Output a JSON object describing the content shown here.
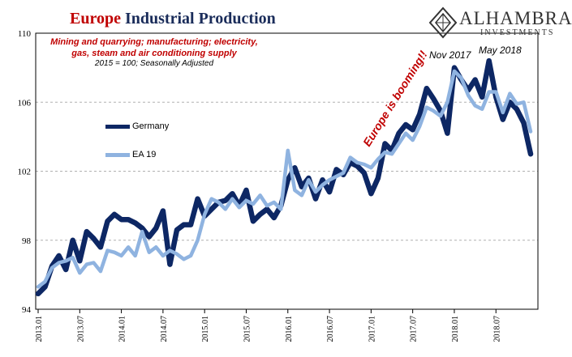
{
  "header": {
    "title_accent": "Europe",
    "title_rest": "Industrial Production",
    "subtitle": "Mining and quarrying; manufacturing; electricity, gas, steam and air conditioning supply",
    "note": "2015 = 100; Seasonally Adjusted"
  },
  "logo": {
    "name": "ALHAMBRA",
    "subtitle": "INVESTMENTS",
    "icon": "alhambra-diamond-icon"
  },
  "colors": {
    "germany": "#0d2764",
    "ea19": "#8fb3e0",
    "annotation": "#c00000",
    "grid": "#b0b0b0"
  },
  "chart_data": {
    "type": "line",
    "ylim": [
      94,
      110
    ],
    "yticks": [
      94,
      98,
      102,
      106,
      110
    ],
    "xticks": [
      "2013.01",
      "2013.07",
      "2014.01",
      "2014.07",
      "2015.01",
      "2015.07",
      "2016.01",
      "2016.07",
      "2017.01",
      "2017.07",
      "2018.01",
      "2018.07"
    ],
    "x": [
      "2013.01",
      "2013.02",
      "2013.03",
      "2013.04",
      "2013.05",
      "2013.06",
      "2013.07",
      "2013.08",
      "2013.09",
      "2013.10",
      "2013.11",
      "2013.12",
      "2014.01",
      "2014.02",
      "2014.03",
      "2014.04",
      "2014.05",
      "2014.06",
      "2014.07",
      "2014.08",
      "2014.09",
      "2014.10",
      "2014.11",
      "2014.12",
      "2015.01",
      "2015.02",
      "2015.03",
      "2015.04",
      "2015.05",
      "2015.06",
      "2015.07",
      "2015.08",
      "2015.09",
      "2015.10",
      "2015.11",
      "2015.12",
      "2016.01",
      "2016.02",
      "2016.03",
      "2016.04",
      "2016.05",
      "2016.06",
      "2016.07",
      "2016.08",
      "2016.09",
      "2016.10",
      "2016.11",
      "2016.12",
      "2017.01",
      "2017.02",
      "2017.03",
      "2017.04",
      "2017.05",
      "2017.06",
      "2017.07",
      "2017.08",
      "2017.09",
      "2017.10",
      "2017.11",
      "2017.12",
      "2018.01",
      "2018.02",
      "2018.03",
      "2018.04",
      "2018.05",
      "2018.06",
      "2018.07",
      "2018.08",
      "2018.09",
      "2018.10",
      "2018.11",
      "2018.12"
    ],
    "series": [
      {
        "name": "Germany",
        "values": [
          94.9,
          95.3,
          96.5,
          97.1,
          96.3,
          98.0,
          96.8,
          98.5,
          98.1,
          97.6,
          99.1,
          99.5,
          99.2,
          99.2,
          99.0,
          98.7,
          98.2,
          98.7,
          99.7,
          96.6,
          98.6,
          98.9,
          98.9,
          100.4,
          99.4,
          99.8,
          100.2,
          100.3,
          100.7,
          100.0,
          100.9,
          99.1,
          99.5,
          99.8,
          99.3,
          100.0,
          101.5,
          102.2,
          101.1,
          101.6,
          100.4,
          101.5,
          100.8,
          102.1,
          101.8,
          102.5,
          102.3,
          101.9,
          100.7,
          101.6,
          103.6,
          103.2,
          104.2,
          104.7,
          104.4,
          105.3,
          106.8,
          106.2,
          105.5,
          104.2,
          108.0,
          107.3,
          106.7,
          107.3,
          106.3,
          108.4,
          106.3,
          105.0,
          106.0,
          105.6,
          104.8,
          103.0
        ]
      },
      {
        "name": "EA 19",
        "values": [
          95.3,
          95.6,
          96.4,
          96.7,
          96.8,
          97.0,
          96.1,
          96.6,
          96.7,
          96.2,
          97.4,
          97.3,
          97.1,
          97.6,
          97.1,
          98.5,
          97.3,
          97.6,
          97.1,
          97.4,
          97.2,
          96.9,
          97.1,
          98.0,
          99.5,
          100.4,
          100.2,
          99.8,
          100.4,
          99.9,
          100.3,
          100.1,
          100.6,
          100.0,
          100.2,
          99.8,
          103.2,
          100.9,
          100.6,
          101.5,
          100.8,
          101.2,
          101.5,
          101.7,
          101.9,
          102.8,
          102.5,
          102.4,
          102.2,
          102.7,
          103.1,
          103.0,
          103.6,
          104.2,
          103.8,
          104.6,
          105.7,
          105.5,
          105.2,
          106.0,
          107.8,
          107.4,
          106.4,
          105.8,
          105.6,
          106.6,
          106.6,
          105.4,
          106.5,
          105.9,
          106.0,
          104.3
        ]
      }
    ],
    "annotations": [
      {
        "text": "Europe is booming!!",
        "style": "red-italic-rotated"
      },
      {
        "text": "Nov 2017"
      },
      {
        "text": "May 2018"
      }
    ],
    "legend": "left-middle",
    "grid": true
  }
}
